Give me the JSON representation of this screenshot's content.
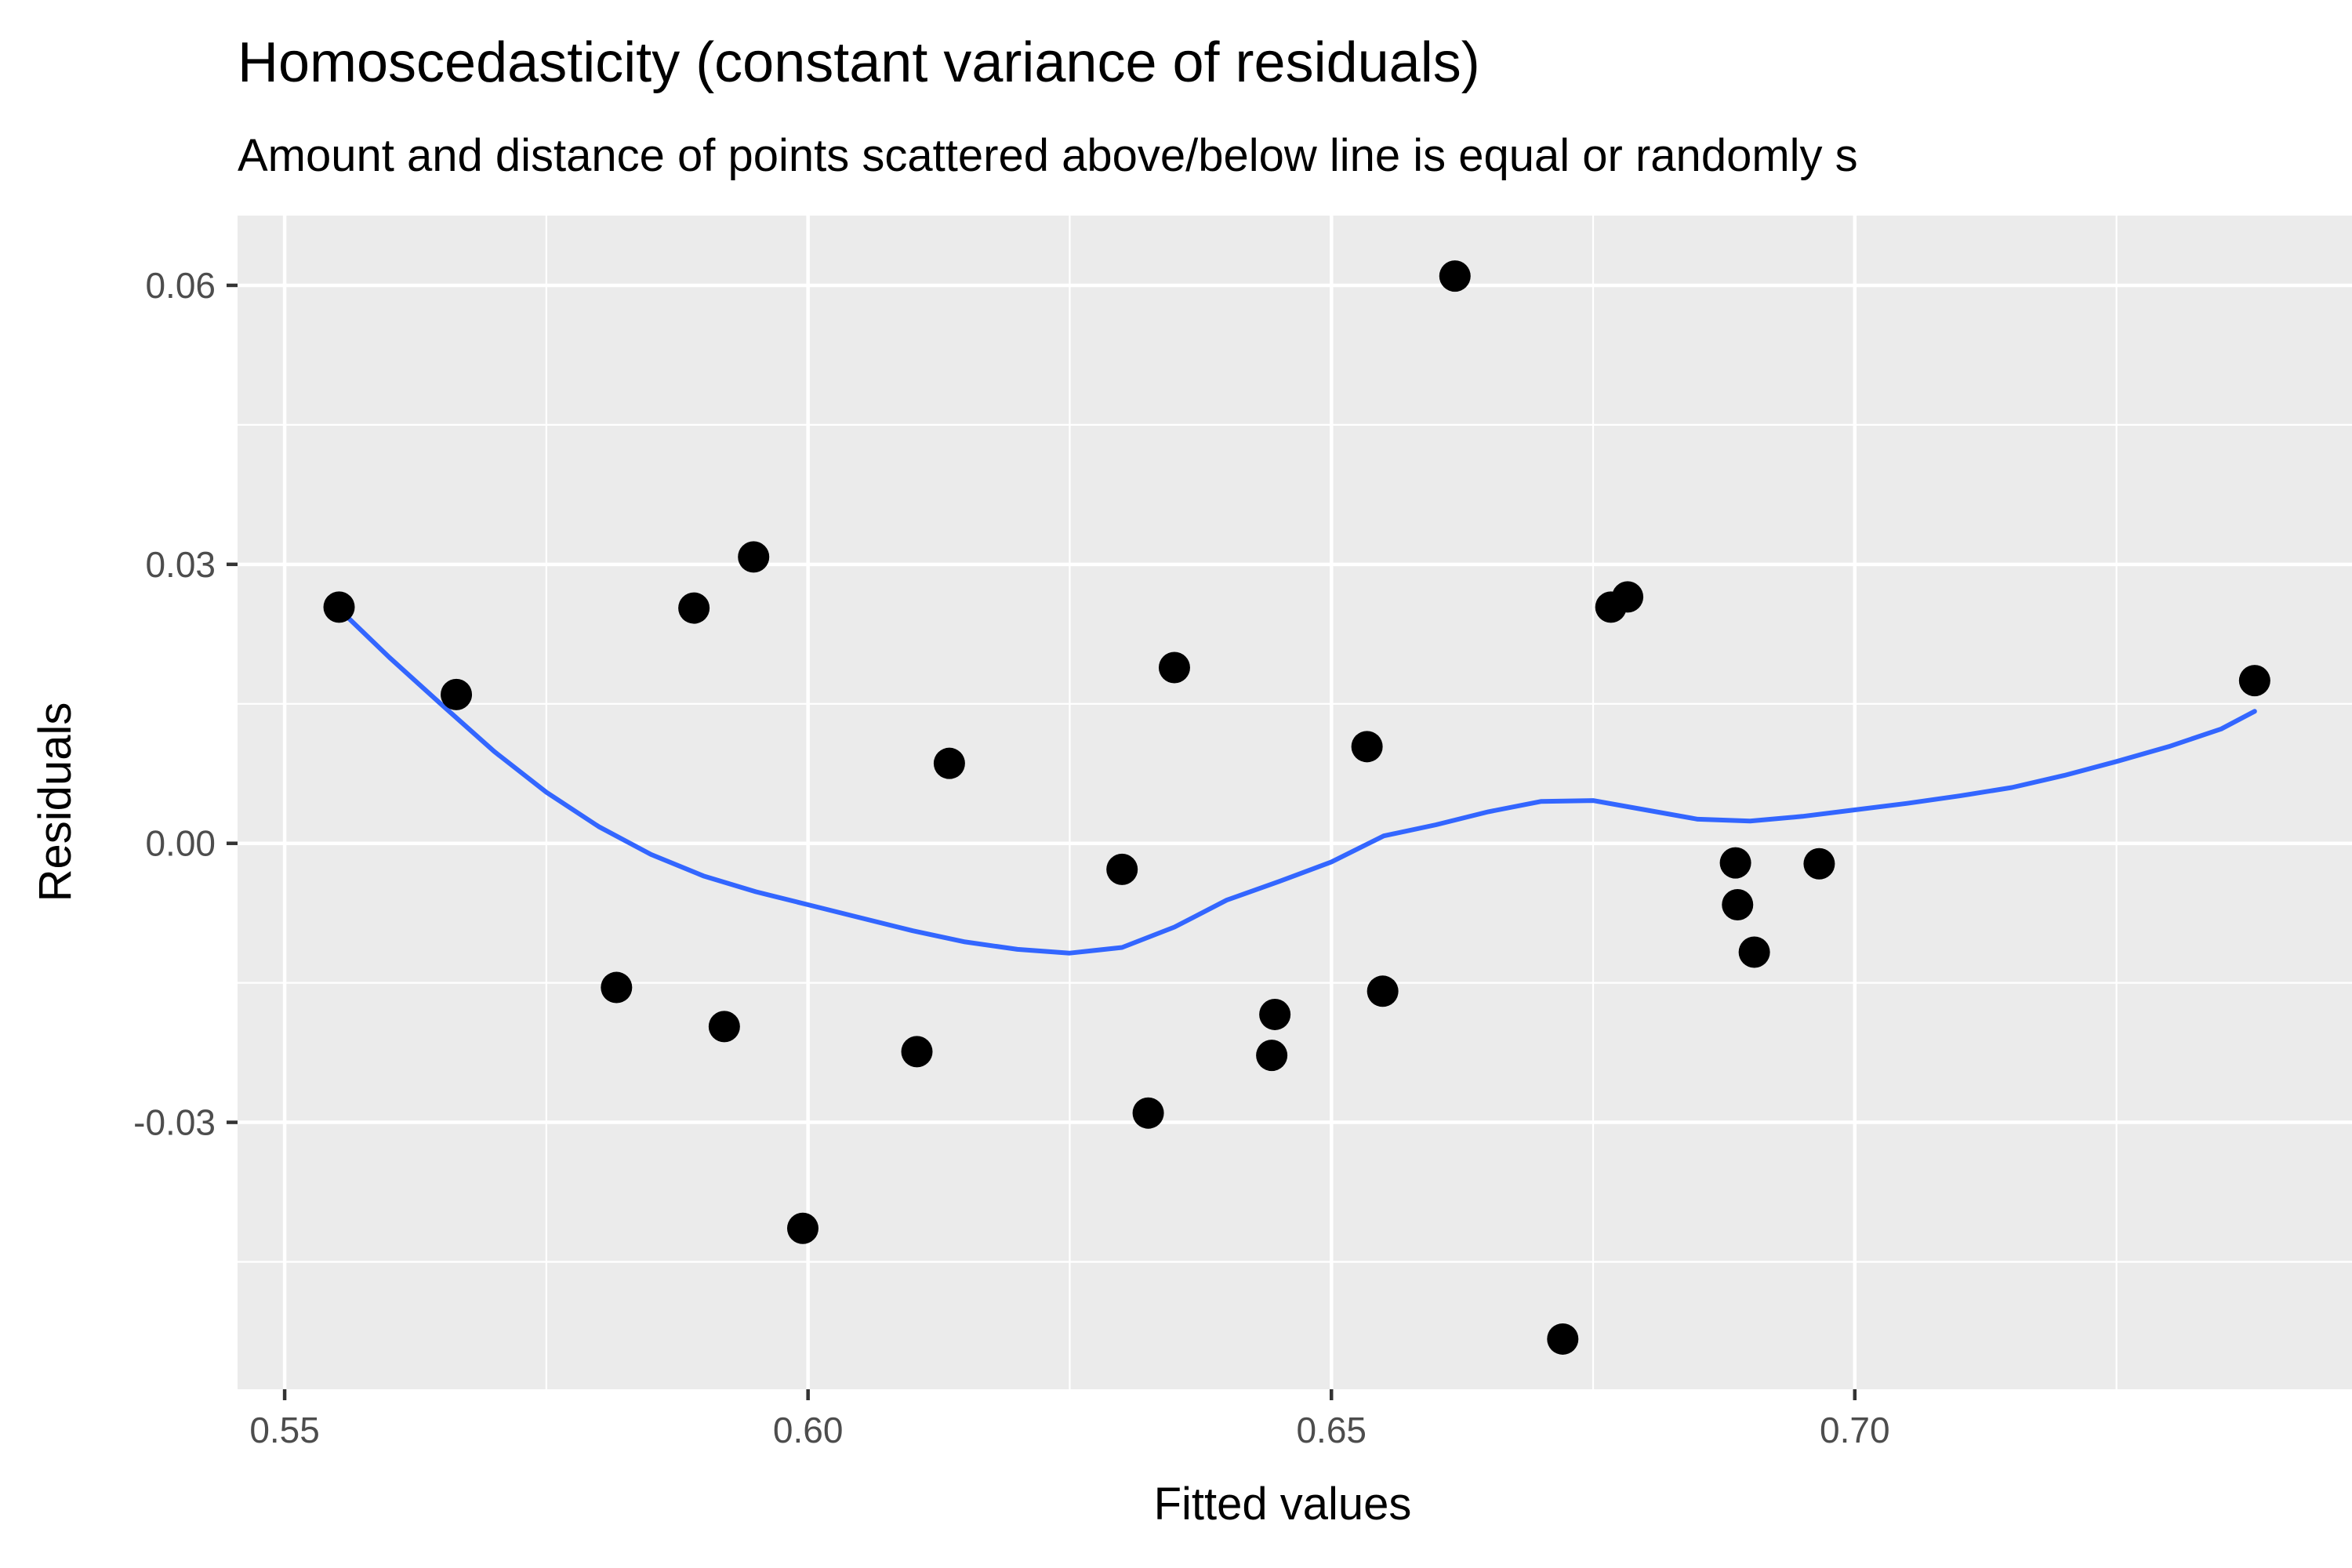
{
  "chart_data": {
    "type": "scatter",
    "title": "Homoscedasticity (constant variance of residuals)",
    "subtitle": "Amount and distance of points scattered above/below line is equal or randomly s",
    "xlabel": "Fitted values",
    "ylabel": "Residuals",
    "xlim": [
      0.5455,
      0.7475
    ],
    "ylim": [
      -0.0587,
      0.0675
    ],
    "x_ticks": [
      0.55,
      0.6,
      0.65,
      0.7
    ],
    "x_tick_labels": [
      "0.55",
      "0.60",
      "0.65",
      "0.70"
    ],
    "y_ticks": [
      -0.03,
      0.0,
      0.03,
      0.06
    ],
    "y_tick_labels": [
      "-0.03",
      "0.00",
      "0.03",
      "0.06"
    ],
    "grid": true,
    "legend": "none",
    "colors": {
      "panel": "#ebebeb",
      "points": "#000000",
      "smooth": "#3366ff"
    },
    "points": [
      {
        "x": 0.5552,
        "y": 0.0254
      },
      {
        "x": 0.5664,
        "y": 0.016
      },
      {
        "x": 0.5817,
        "y": -0.0155
      },
      {
        "x": 0.5891,
        "y": 0.0253
      },
      {
        "x": 0.592,
        "y": -0.0197
      },
      {
        "x": 0.5948,
        "y": 0.0308
      },
      {
        "x": 0.5995,
        "y": -0.0414
      },
      {
        "x": 0.6104,
        "y": -0.0224
      },
      {
        "x": 0.6135,
        "y": 0.0086
      },
      {
        "x": 0.63,
        "y": -0.0028
      },
      {
        "x": 0.6325,
        "y": -0.029
      },
      {
        "x": 0.635,
        "y": 0.0189
      },
      {
        "x": 0.6443,
        "y": -0.0228
      },
      {
        "x": 0.6446,
        "y": -0.0184
      },
      {
        "x": 0.6534,
        "y": 0.0104
      },
      {
        "x": 0.6549,
        "y": -0.0159
      },
      {
        "x": 0.6618,
        "y": 0.061
      },
      {
        "x": 0.6721,
        "y": -0.0533
      },
      {
        "x": 0.6767,
        "y": 0.0254
      },
      {
        "x": 0.6783,
        "y": 0.0265
      },
      {
        "x": 0.6886,
        "y": -0.0021
      },
      {
        "x": 0.6888,
        "y": -0.0066
      },
      {
        "x": 0.6904,
        "y": -0.0117
      },
      {
        "x": 0.6966,
        "y": -0.0022
      },
      {
        "x": 0.7382,
        "y": 0.0175
      }
    ],
    "smooth_line": {
      "x": [
        0.5552,
        0.56,
        0.565,
        0.57,
        0.575,
        0.58,
        0.585,
        0.59,
        0.595,
        0.6,
        0.605,
        0.61,
        0.615,
        0.62,
        0.625,
        0.63,
        0.635,
        0.64,
        0.645,
        0.65,
        0.655,
        0.66,
        0.665,
        0.67,
        0.675,
        0.68,
        0.685,
        0.69,
        0.695,
        0.7,
        0.705,
        0.71,
        0.715,
        0.72,
        0.725,
        0.73,
        0.735,
        0.7382
      ],
      "y": [
        0.0252,
        0.02,
        0.0149,
        0.0099,
        0.0055,
        0.0018,
        -0.0012,
        -0.0035,
        -0.0052,
        -0.0066,
        -0.008,
        -0.0094,
        -0.0106,
        -0.0114,
        -0.0118,
        -0.0112,
        -0.009,
        -0.0061,
        -0.0041,
        -0.002,
        0.0008,
        0.002,
        0.0034,
        0.0045,
        0.0046,
        0.0036,
        0.0026,
        0.0024,
        0.0029,
        0.0036,
        0.0043,
        0.0051,
        0.006,
        0.0073,
        0.0088,
        0.0104,
        0.0123,
        0.0142
      ]
    }
  }
}
